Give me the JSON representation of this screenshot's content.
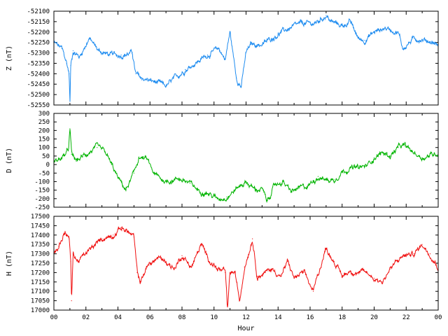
{
  "chart_data": [
    {
      "type": "line",
      "ylabel": "Z (nT)",
      "ylim": [
        -52550,
        -52100
      ],
      "yticks": [
        -52550,
        -52500,
        -52450,
        -52400,
        -52350,
        -52300,
        -52250,
        -52200,
        -52150,
        -52100
      ],
      "color": "#1e8cf0",
      "x": [
        0,
        0.5,
        0.8,
        0.95,
        1.0,
        1.05,
        1.2,
        1.6,
        2.2,
        2.8,
        3.5,
        4.2,
        4.9,
        5.1,
        5.4,
        6.3,
        7.0,
        8.2,
        9.0,
        9.6,
        10.3,
        10.7,
        11.0,
        11.4,
        11.7,
        12.0,
        12.3,
        13.0,
        13.8,
        14.2,
        14.8,
        15.5,
        16.3,
        17.0,
        17.3,
        18.0,
        18.5,
        19.0,
        19.4,
        20.0,
        20.7,
        21.5,
        21.8,
        22.5,
        23.3,
        24.0
      ],
      "values": [
        -52250,
        -52280,
        -52350,
        -52400,
        -52550,
        -52360,
        -52290,
        -52320,
        -52230,
        -52290,
        -52310,
        -52310,
        -52300,
        -52400,
        -52420,
        -52440,
        -52460,
        -52380,
        -52340,
        -52310,
        -52280,
        -52330,
        -52200,
        -52420,
        -52460,
        -52300,
        -52260,
        -52260,
        -52220,
        -52200,
        -52180,
        -52160,
        -52160,
        -52120,
        -52150,
        -52170,
        -52150,
        -52230,
        -52240,
        -52200,
        -52180,
        -52200,
        -52280,
        -52230,
        -52240,
        -52260
      ]
    },
    {
      "type": "line",
      "ylabel": "D (nT)",
      "ylim": [
        -250,
        300
      ],
      "yticks": [
        -250,
        -200,
        -150,
        -100,
        -50,
        0,
        50,
        100,
        150,
        200,
        250,
        300
      ],
      "color": "#00b400",
      "x": [
        0,
        0.5,
        0.9,
        1.0,
        1.1,
        1.4,
        2.0,
        2.7,
        3.2,
        3.6,
        4.0,
        4.5,
        5.0,
        5.3,
        5.8,
        6.3,
        7.0,
        7.8,
        8.5,
        9.0,
        9.5,
        10.2,
        10.8,
        11.4,
        12.0,
        12.6,
        13.0,
        13.3,
        13.8,
        14.3,
        14.8,
        15.3,
        15.8,
        16.5,
        17.0,
        17.5,
        18.0,
        18.5,
        19.0,
        19.5,
        20.0,
        20.5,
        21.0,
        21.5,
        21.9,
        22.3,
        23.0,
        24.0
      ],
      "values": [
        20,
        40,
        80,
        210,
        60,
        20,
        60,
        100,
        70,
        0,
        -80,
        -150,
        -50,
        40,
        30,
        -60,
        -100,
        -80,
        -110,
        -150,
        -160,
        -200,
        -190,
        -140,
        -100,
        -150,
        -140,
        -220,
        -120,
        -100,
        -160,
        -140,
        -130,
        -70,
        -90,
        -90,
        -40,
        -20,
        -20,
        -10,
        40,
        70,
        50,
        100,
        110,
        80,
        40,
        70
      ]
    },
    {
      "type": "line",
      "ylabel": "H (nT)",
      "ylim": [
        17000,
        17500
      ],
      "yticks": [
        17000,
        17050,
        17100,
        17150,
        17200,
        17250,
        17300,
        17350,
        17400,
        17450,
        17500
      ],
      "color": "#f01010",
      "x": [
        0,
        0.3,
        0.7,
        0.95,
        1.05,
        1.1,
        1.2,
        1.5,
        2.0,
        2.5,
        3.0,
        3.7,
        4.2,
        4.6,
        5.0,
        5.2,
        5.4,
        5.8,
        6.5,
        7.0,
        7.5,
        8.0,
        8.6,
        9.2,
        9.6,
        10.2,
        10.7,
        10.85,
        11.0,
        11.3,
        11.6,
        11.9,
        12.4,
        12.7,
        13.2,
        13.6,
        14.2,
        14.6,
        15.0,
        15.6,
        16.2,
        16.6,
        17.0,
        17.5,
        18.0,
        18.5,
        19.0,
        19.5,
        20.0,
        20.5,
        21.0,
        21.8,
        22.5,
        23.0,
        23.5,
        24.0
      ],
      "values": [
        17300,
        17340,
        17420,
        17380,
        17260,
        17050,
        17300,
        17260,
        17300,
        17340,
        17380,
        17400,
        17440,
        17420,
        17390,
        17200,
        17150,
        17230,
        17280,
        17260,
        17220,
        17290,
        17230,
        17350,
        17280,
        17220,
        17200,
        17000,
        17200,
        17200,
        17050,
        17230,
        17380,
        17180,
        17200,
        17220,
        17180,
        17260,
        17170,
        17200,
        17100,
        17220,
        17330,
        17260,
        17180,
        17210,
        17200,
        17200,
        17170,
        17150,
        17220,
        17290,
        17300,
        17350,
        17300,
        17230
      ]
    }
  ],
  "x_axis": {
    "xlabel": "Hour",
    "xlim": [
      0,
      24
    ],
    "tick_labels": [
      "00",
      "02",
      "04",
      "06",
      "08",
      "10",
      "12",
      "14",
      "16",
      "18",
      "20",
      "22",
      "00"
    ]
  }
}
